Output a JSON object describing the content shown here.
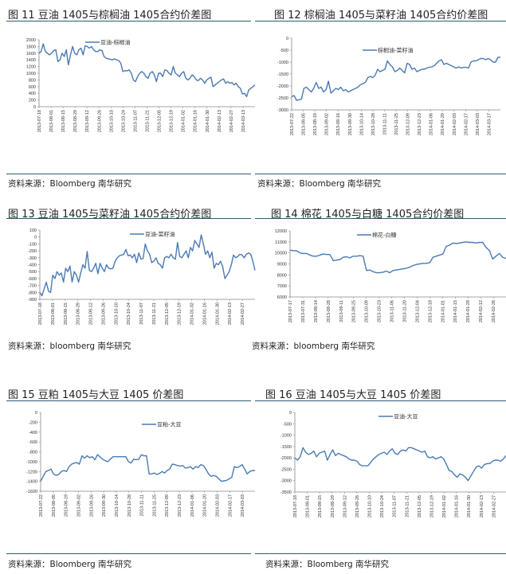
{
  "line_color": "#4a7ab3",
  "sources": {
    "row1": "资料来源：Bloomberg 南华研究",
    "row2": "资料来源：bloomberg 南华研究",
    "row3": "资料来源：Bloomberg 南华研究"
  },
  "chart_data": [
    {
      "type": "line",
      "title": "图 11 豆油 1405与棕榈油 1405合约价差图",
      "legend": "豆油-棕榈油",
      "ylim": [
        0,
        2000
      ],
      "yticks": [
        2000,
        1800,
        1600,
        1400,
        1200,
        1000,
        800,
        600,
        400,
        200,
        0
      ],
      "xticks": [
        "2013-07-18",
        "2013-08-01",
        "2013-08-15",
        "2013-08-29",
        "2013-09-12",
        "2013-09-26",
        "2013-10-10",
        "2013-10-24",
        "2013-11-07",
        "2013-11-21",
        "2013-12-05",
        "2013-12-19",
        "2014-01-02",
        "2014-01-16",
        "2014-01-30",
        "2014-02-13",
        "2014-02-27",
        "2014-03-13"
      ],
      "values": [
        1600,
        1650,
        1880,
        1650,
        1600,
        1550,
        1600,
        1680,
        1700,
        1350,
        1400,
        1600,
        1500,
        1700,
        1250,
        1550,
        1800,
        1600,
        1550,
        1700,
        1750,
        1550,
        1820,
        1800,
        1750,
        1800,
        1700,
        1650,
        1650,
        1700,
        1680,
        1500,
        1450,
        1430,
        1420,
        1400,
        1430,
        1400,
        1380,
        1300,
        1050,
        1080,
        1070,
        1100,
        1000,
        800,
        750,
        900,
        1000,
        1050,
        1000,
        900,
        850,
        1000,
        1050,
        950,
        750,
        1000,
        1000,
        900,
        1100,
        1080,
        1000,
        950,
        1200,
        1000,
        950,
        900,
        1000,
        1050,
        850,
        800,
        850,
        950,
        900,
        800,
        780,
        850,
        800,
        700,
        800,
        850,
        880,
        600,
        650,
        700,
        750,
        800,
        830,
        700,
        750,
        700,
        720,
        650,
        700,
        600,
        550,
        380,
        400,
        300,
        500,
        550,
        600,
        650
      ]
    },
    {
      "type": "line",
      "title": "图 12 棕榈油 1405与菜籽油 1405合约价差图",
      "legend": "棕榈油-菜籽油",
      "ylim": [
        -3000,
        0
      ],
      "yticks": [
        0,
        -500,
        -1000,
        -1500,
        -2000,
        -2500,
        -3000
      ],
      "xticks": [
        "2013-07-22",
        "2013-08-05",
        "2013-08-19",
        "2013-09-02",
        "2013-09-16",
        "2013-09-30",
        "2013-10-14",
        "2013-10-28",
        "2013-11-11",
        "2013-11-25",
        "2013-12-09",
        "2013-12-23",
        "2014-01-06",
        "2014-01-20",
        "2014-02-03",
        "2014-02-17",
        "2014-03-03",
        "2014-03-17"
      ],
      "values": [
        -2450,
        -2400,
        -2600,
        -2580,
        -2550,
        -2100,
        -2050,
        -2150,
        -2250,
        -2100,
        -1850,
        -2100,
        -2050,
        -2250,
        -2150,
        -1800,
        -2300,
        -2200,
        -2100,
        -2150,
        -2050,
        -2200,
        -2150,
        -2250,
        -2200,
        -2150,
        -2100,
        -2050,
        -1950,
        -1900,
        -1850,
        -1650,
        -1600,
        -1650,
        -1550,
        -1300,
        -1400,
        -1350,
        -1300,
        -950,
        -1100,
        -1200,
        -1400,
        -1350,
        -1250,
        -1350,
        -1450,
        -1050,
        -1100,
        -1300,
        -1250,
        -1400,
        -1350,
        -1300,
        -1300,
        -1250,
        -1220,
        -1200,
        -1150,
        -1050,
        -950,
        -900,
        -1100,
        -1050,
        -1100,
        -1150,
        -1200,
        -1250,
        -1200,
        -1250,
        -1220,
        -1220,
        -1250,
        -1000,
        -950,
        -950,
        -900,
        -850,
        -850,
        -900,
        -850,
        -900,
        -1000,
        -1000,
        -800,
        -800
      ]
    },
    {
      "type": "line",
      "title": "图 13 豆油 1405与菜籽油 1405合约价差图",
      "legend": "豆油-菜籽油",
      "ylim": [
        -900,
        100
      ],
      "yticks": [
        100,
        0,
        -100,
        -200,
        -300,
        -400,
        -500,
        -600,
        -700,
        -800,
        -900
      ],
      "xticks": [
        "2013-07-18",
        "2013-08-01",
        "2013-08-15",
        "2013-08-29",
        "2013-09-12",
        "2013-09-26",
        "2013-10-10",
        "2013-10-24",
        "2013-11-07",
        "2013-11-21",
        "2013-12-05",
        "2013-12-19",
        "2014-01-02",
        "2014-01-16",
        "2014-01-30",
        "2014-02-13",
        "2014-02-27"
      ],
      "values": [
        -800,
        -850,
        -750,
        -650,
        -780,
        -800,
        -550,
        -600,
        -500,
        -550,
        -520,
        -650,
        -450,
        -500,
        -420,
        -650,
        -500,
        -550,
        -650,
        -520,
        -400,
        -450,
        -210,
        -480,
        -500,
        -450,
        -380,
        -530,
        -380,
        -450,
        -500,
        -400,
        -450,
        -460,
        -450,
        -350,
        -300,
        -270,
        -260,
        -250,
        -180,
        -270,
        -260,
        -300,
        -250,
        -370,
        -230,
        -320,
        -310,
        -100,
        -200,
        -250,
        -370,
        -350,
        -300,
        -380,
        -400,
        -450,
        -300,
        -280,
        -300,
        -250,
        -300,
        -320,
        -80,
        -280,
        -300,
        -250,
        -200,
        -300,
        -150,
        -200,
        -50,
        -100,
        -150,
        30,
        -100,
        -250,
        -200,
        -300,
        -220,
        -450,
        -380,
        -400,
        -350,
        -430,
        -600,
        -550,
        -500,
        -400,
        -260,
        -300,
        -280,
        -250,
        -260,
        -300,
        -250,
        -230,
        -250,
        -350,
        -480
      ]
    },
    {
      "type": "line",
      "title": "图 14 棉花 1405与白糖 1405合约价差图",
      "legend": "棉花-白糖",
      "ylim": [
        6000,
        12000
      ],
      "yticks": [
        12000,
        11000,
        10000,
        9000,
        8000,
        7000,
        6000
      ],
      "xticks": [
        "2013-07-17",
        "2013-07-31",
        "2013-08-14",
        "2013-08-28",
        "2013-09-11",
        "2013-09-25",
        "2013-10-09",
        "2013-10-23",
        "2013-11-06",
        "2013-11-20",
        "2013-12-04",
        "2013-12-18",
        "2014-01-01",
        "2014-01-15",
        "2014-01-29",
        "2014-02-12",
        "2014-02-26"
      ],
      "values": [
        10250,
        10200,
        10200,
        10000,
        9950,
        9950,
        9800,
        9700,
        9700,
        9800,
        9900,
        9850,
        9850,
        9300,
        9350,
        9400,
        9600,
        9650,
        9550,
        9700,
        9700,
        9750,
        9700,
        8400,
        8450,
        8300,
        8200,
        8200,
        8250,
        8350,
        8200,
        8400,
        8450,
        8500,
        8550,
        8600,
        8700,
        8850,
        8950,
        9000,
        9050,
        9050,
        9100,
        9600,
        9700,
        9800,
        9900,
        10600,
        10700,
        10900,
        10850,
        10900,
        10950,
        11000,
        10950,
        10950,
        10900,
        10950,
        10950,
        10500,
        10200,
        9450,
        9700,
        9950,
        9600,
        9500
      ]
    },
    {
      "type": "line",
      "title": "图 15 豆粕 1405与大豆 1405 价差图",
      "legend": "豆粕-大豆",
      "ylim": [
        -1600,
        0
      ],
      "yticks": [
        0,
        -200,
        -400,
        -600,
        -800,
        -1000,
        -1200,
        -1400,
        -1600
      ],
      "xticks": [
        "2013-07-22",
        "2013-08-05",
        "2013-08-19",
        "2013-09-02",
        "2013-09-16",
        "2013-09-30",
        "2013-10-14",
        "2013-10-28",
        "2013-11-11",
        "2013-11-25",
        "2013-12-09",
        "2013-12-23",
        "2014-01-06",
        "2014-01-20",
        "2014-02-03",
        "2014-02-17",
        "2014-03-03"
      ],
      "values": [
        -1400,
        -1300,
        -1200,
        -1180,
        -1150,
        -1250,
        -1280,
        -1260,
        -1200,
        -1180,
        -1200,
        -1100,
        -1050,
        -1030,
        -1020,
        -1050,
        -880,
        -930,
        -880,
        -920,
        -900,
        -960,
        -860,
        -900,
        -950,
        -980,
        -1000,
        -950,
        -900,
        -900,
        -900,
        -900,
        -900,
        -900,
        -1000,
        -1030,
        -950,
        -960,
        -950,
        -860,
        -880,
        -880,
        -1250,
        -1250,
        -1230,
        -1260,
        -1240,
        -1200,
        -1230,
        -1180,
        -1150,
        -1050,
        -1060,
        -1080,
        -1090,
        -1080,
        -1130,
        -1120,
        -1100,
        -1150,
        -1100,
        -1120,
        -1060,
        -1080,
        -1150,
        -1250,
        -1300,
        -1280,
        -1300,
        -1350,
        -1400,
        -1390,
        -1380,
        -1350,
        -1320,
        -1100,
        -1120,
        -1100,
        -1060,
        -1150,
        -1250,
        -1200,
        -1180,
        -1180
      ]
    },
    {
      "type": "line",
      "title": "图 16 豆油 1405与大豆 1405 价差图",
      "legend": "豆油-大豆",
      "ylim": [
        -3500,
        0
      ],
      "yticks": [
        0,
        -500,
        -1000,
        -1500,
        -2000,
        -2500,
        -3000,
        -3500
      ],
      "xticks": [
        "2013-07-18",
        "2013-08-01",
        "2013-08-15",
        "2013-08-29",
        "2013-09-12",
        "2013-09-26",
        "2013-10-10",
        "2013-10-24",
        "2013-11-07",
        "2013-11-21",
        "2013-12-05",
        "2013-12-19",
        "2014-01-02",
        "2014-01-16",
        "2014-01-30",
        "2014-02-13",
        "2014-02-27"
      ],
      "values": [
        -2000,
        -2100,
        -1950,
        -1550,
        -1750,
        -1850,
        -1800,
        -1700,
        -1950,
        -1800,
        -1750,
        -1700,
        -2100,
        -1850,
        -1650,
        -1900,
        -1800,
        -1850,
        -1900,
        -1950,
        -2050,
        -2100,
        -2100,
        -2150,
        -2300,
        -2350,
        -2350,
        -2350,
        -2200,
        -2050,
        -1950,
        -1850,
        -1800,
        -1750,
        -1850,
        -1700,
        -1600,
        -1800,
        -1850,
        -1700,
        -1650,
        -1700,
        -1550,
        -1550,
        -1600,
        -1650,
        -1700,
        -1750,
        -1700,
        -1950,
        -2000,
        -1950,
        -2050,
        -2000,
        -1950,
        -2050,
        -2300,
        -2550,
        -2600,
        -2750,
        -2850,
        -2700,
        -2750,
        -2850,
        -3000,
        -2800,
        -2600,
        -2400,
        -2350,
        -2450,
        -2300,
        -2250,
        -2250,
        -2150,
        -2100,
        -2100,
        -2150,
        -2050,
        -1900
      ]
    }
  ]
}
